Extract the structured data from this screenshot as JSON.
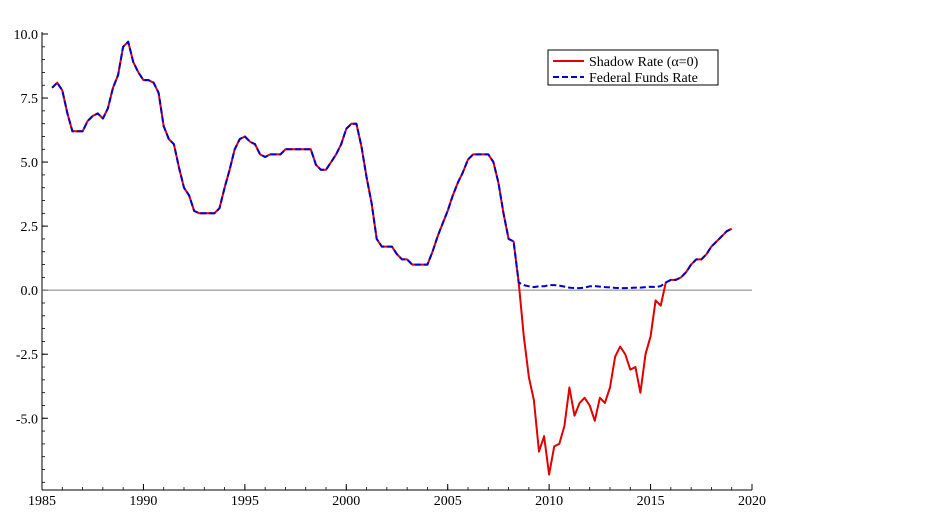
{
  "chart_data": {
    "type": "line",
    "title": "",
    "xlabel": "",
    "ylabel": "",
    "xlim": [
      1985,
      2020
    ],
    "ylim": [
      -7.8,
      10.0
    ],
    "x_ticks": [
      1985,
      1990,
      1995,
      2000,
      2005,
      2010,
      2015,
      2020
    ],
    "x_tick_labels": [
      "1985",
      "1990",
      "1995",
      "2000",
      "2005",
      "2010",
      "2015",
      "2020"
    ],
    "y_ticks": [
      10.0,
      7.5,
      5.0,
      2.5,
      0.0,
      -2.5,
      -5.0
    ],
    "y_tick_labels": [
      "10.0",
      "7.5",
      "5.0",
      "2.5",
      "0.0",
      "-2.5",
      "-5.0"
    ],
    "zero_line": true,
    "grid": false,
    "legend_position": "top-right",
    "series": [
      {
        "name": "Shadow Rate (α=0)",
        "color": "#e00000",
        "style": "solid",
        "x": [
          1985.5,
          1985.75,
          1986.0,
          1986.25,
          1986.5,
          1986.75,
          1987.0,
          1987.25,
          1987.5,
          1987.75,
          1988.0,
          1988.25,
          1988.5,
          1988.75,
          1989.0,
          1989.25,
          1989.5,
          1989.75,
          1990.0,
          1990.25,
          1990.5,
          1990.75,
          1991.0,
          1991.25,
          1991.5,
          1991.75,
          1992.0,
          1992.25,
          1992.5,
          1992.75,
          1993.0,
          1993.25,
          1993.5,
          1993.75,
          1994.0,
          1994.25,
          1994.5,
          1994.75,
          1995.0,
          1995.25,
          1995.5,
          1995.75,
          1996.0,
          1996.25,
          1996.5,
          1996.75,
          1997.0,
          1997.25,
          1997.5,
          1997.75,
          1998.0,
          1998.25,
          1998.5,
          1998.75,
          1999.0,
          1999.25,
          1999.5,
          1999.75,
          2000.0,
          2000.25,
          2000.5,
          2000.75,
          2001.0,
          2001.25,
          2001.5,
          2001.75,
          2002.0,
          2002.25,
          2002.5,
          2002.75,
          2003.0,
          2003.25,
          2003.5,
          2003.75,
          2004.0,
          2004.25,
          2004.5,
          2004.75,
          2005.0,
          2005.25,
          2005.5,
          2005.75,
          2006.0,
          2006.25,
          2006.5,
          2006.75,
          2007.0,
          2007.25,
          2007.5,
          2007.75,
          2008.0,
          2008.25,
          2008.5,
          2008.75,
          2009.0,
          2009.25,
          2009.5,
          2009.75,
          2010.0,
          2010.25,
          2010.5,
          2010.75,
          2011.0,
          2011.25,
          2011.5,
          2011.75,
          2012.0,
          2012.25,
          2012.5,
          2012.75,
          2013.0,
          2013.25,
          2013.5,
          2013.75,
          2014.0,
          2014.25,
          2014.5,
          2014.75,
          2015.0,
          2015.25,
          2015.5,
          2015.75,
          2016.0,
          2016.25,
          2016.5,
          2016.75,
          2017.0,
          2017.25,
          2017.5,
          2017.75,
          2018.0,
          2018.25,
          2018.5,
          2018.75,
          2019.0
        ],
        "y": [
          7.9,
          8.1,
          7.8,
          6.9,
          6.2,
          6.2,
          6.2,
          6.6,
          6.8,
          6.9,
          6.7,
          7.1,
          7.9,
          8.4,
          9.5,
          9.7,
          8.9,
          8.5,
          8.2,
          8.2,
          8.1,
          7.7,
          6.4,
          5.9,
          5.7,
          4.8,
          4.0,
          3.7,
          3.1,
          3.0,
          3.0,
          3.0,
          3.0,
          3.2,
          4.0,
          4.7,
          5.5,
          5.9,
          6.0,
          5.8,
          5.7,
          5.3,
          5.2,
          5.3,
          5.3,
          5.3,
          5.5,
          5.5,
          5.5,
          5.5,
          5.5,
          5.5,
          4.9,
          4.7,
          4.7,
          5.0,
          5.3,
          5.7,
          6.3,
          6.5,
          6.5,
          5.6,
          4.4,
          3.4,
          2.0,
          1.7,
          1.7,
          1.7,
          1.4,
          1.2,
          1.2,
          1.0,
          1.0,
          1.0,
          1.0,
          1.5,
          2.1,
          2.6,
          3.1,
          3.7,
          4.2,
          4.6,
          5.1,
          5.3,
          5.3,
          5.3,
          5.3,
          5.0,
          4.2,
          3.0,
          2.0,
          1.9,
          0.3,
          -1.8,
          -3.4,
          -4.3,
          -6.3,
          -5.7,
          -7.2,
          -6.1,
          -6.0,
          -5.3,
          -3.8,
          -4.9,
          -4.4,
          -4.2,
          -4.5,
          -5.1,
          -4.2,
          -4.4,
          -3.8,
          -2.6,
          -2.2,
          -2.5,
          -3.1,
          -3.0,
          -4.0,
          -2.5,
          -1.8,
          -0.4,
          -0.6,
          0.3,
          0.4,
          0.4,
          0.5,
          0.7,
          1.0,
          1.2,
          1.2,
          1.4,
          1.7,
          1.9,
          2.1,
          2.3,
          2.4
        ]
      },
      {
        "name": "Federal Funds Rate",
        "color": "#0000cc",
        "style": "dashed",
        "x": [
          1985.5,
          1985.75,
          1986.0,
          1986.25,
          1986.5,
          1986.75,
          1987.0,
          1987.25,
          1987.5,
          1987.75,
          1988.0,
          1988.25,
          1988.5,
          1988.75,
          1989.0,
          1989.25,
          1989.5,
          1989.75,
          1990.0,
          1990.25,
          1990.5,
          1990.75,
          1991.0,
          1991.25,
          1991.5,
          1991.75,
          1992.0,
          1992.25,
          1992.5,
          1992.75,
          1993.0,
          1993.25,
          1993.5,
          1993.75,
          1994.0,
          1994.25,
          1994.5,
          1994.75,
          1995.0,
          1995.25,
          1995.5,
          1995.75,
          1996.0,
          1996.25,
          1996.5,
          1996.75,
          1997.0,
          1997.25,
          1997.5,
          1997.75,
          1998.0,
          1998.25,
          1998.5,
          1998.75,
          1999.0,
          1999.25,
          1999.5,
          1999.75,
          2000.0,
          2000.25,
          2000.5,
          2000.75,
          2001.0,
          2001.25,
          2001.5,
          2001.75,
          2002.0,
          2002.25,
          2002.5,
          2002.75,
          2003.0,
          2003.25,
          2003.5,
          2003.75,
          2004.0,
          2004.25,
          2004.5,
          2004.75,
          2005.0,
          2005.25,
          2005.5,
          2005.75,
          2006.0,
          2006.25,
          2006.5,
          2006.75,
          2007.0,
          2007.25,
          2007.5,
          2007.75,
          2008.0,
          2008.25,
          2008.5,
          2008.75,
          2009.0,
          2009.25,
          2009.5,
          2009.75,
          2010.0,
          2010.25,
          2010.5,
          2010.75,
          2011.0,
          2011.25,
          2011.5,
          2011.75,
          2012.0,
          2012.25,
          2012.5,
          2012.75,
          2013.0,
          2013.25,
          2013.5,
          2013.75,
          2014.0,
          2014.25,
          2014.5,
          2014.75,
          2015.0,
          2015.25,
          2015.5,
          2015.75,
          2016.0,
          2016.25,
          2016.5,
          2016.75,
          2017.0,
          2017.25,
          2017.5,
          2017.75,
          2018.0,
          2018.25,
          2018.5,
          2018.75,
          2019.0
        ],
        "y": [
          7.9,
          8.1,
          7.8,
          6.9,
          6.2,
          6.2,
          6.2,
          6.6,
          6.8,
          6.9,
          6.7,
          7.1,
          7.9,
          8.4,
          9.5,
          9.7,
          8.9,
          8.5,
          8.2,
          8.2,
          8.1,
          7.7,
          6.4,
          5.9,
          5.7,
          4.8,
          4.0,
          3.7,
          3.1,
          3.0,
          3.0,
          3.0,
          3.0,
          3.2,
          4.0,
          4.7,
          5.5,
          5.9,
          6.0,
          5.8,
          5.7,
          5.3,
          5.2,
          5.3,
          5.3,
          5.3,
          5.5,
          5.5,
          5.5,
          5.5,
          5.5,
          5.5,
          4.9,
          4.7,
          4.7,
          5.0,
          5.3,
          5.7,
          6.3,
          6.5,
          6.5,
          5.6,
          4.4,
          3.4,
          2.0,
          1.7,
          1.7,
          1.7,
          1.4,
          1.2,
          1.2,
          1.0,
          1.0,
          1.0,
          1.0,
          1.5,
          2.1,
          2.6,
          3.1,
          3.7,
          4.2,
          4.6,
          5.1,
          5.3,
          5.3,
          5.3,
          5.3,
          5.0,
          4.2,
          3.0,
          2.0,
          1.9,
          0.3,
          0.2,
          0.15,
          0.12,
          0.15,
          0.15,
          0.2,
          0.2,
          0.18,
          0.14,
          0.1,
          0.08,
          0.08,
          0.1,
          0.15,
          0.16,
          0.14,
          0.12,
          0.11,
          0.09,
          0.08,
          0.08,
          0.09,
          0.1,
          0.1,
          0.12,
          0.13,
          0.12,
          0.16,
          0.3,
          0.4,
          0.4,
          0.5,
          0.7,
          1.0,
          1.2,
          1.2,
          1.4,
          1.7,
          1.9,
          2.1,
          2.3,
          2.4
        ]
      }
    ]
  }
}
